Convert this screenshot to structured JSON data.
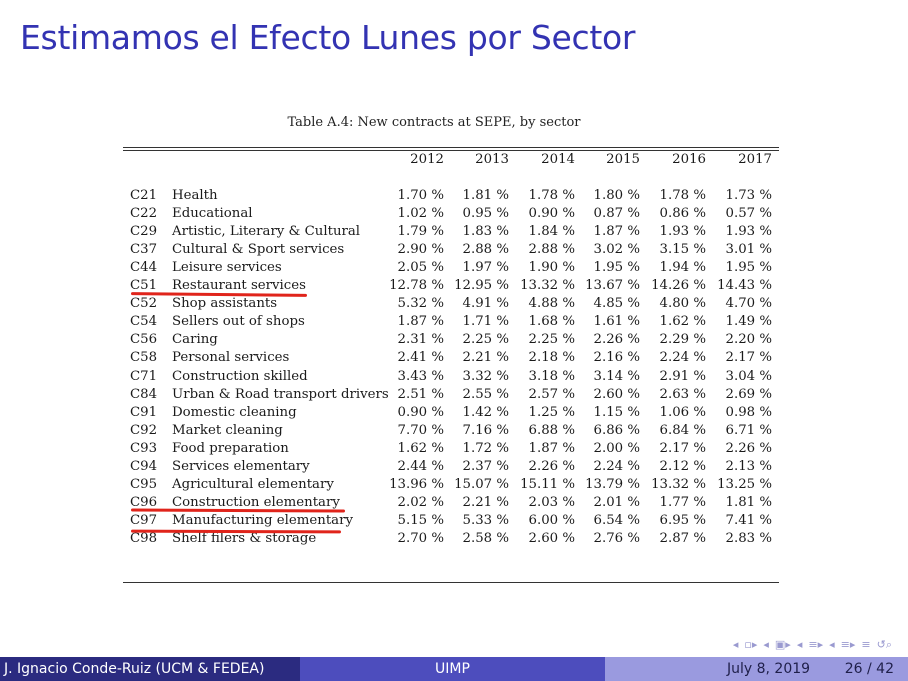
{
  "slide": {
    "title": "Estimamos el Efecto Lunes por Sector"
  },
  "table": {
    "caption": "Table A.4: New contracts at SEPE, by sector",
    "years": [
      "2012",
      "2013",
      "2014",
      "2015",
      "2016",
      "2017"
    ],
    "rows": [
      {
        "code": "C21",
        "name": "Health",
        "values": [
          "1.70 %",
          "1.81 %",
          "1.78 %",
          "1.80 %",
          "1.78 %",
          "1.73 %"
        ]
      },
      {
        "code": "C22",
        "name": "Educational",
        "values": [
          "1.02 %",
          "0.95 %",
          "0.90 %",
          "0.87 %",
          "0.86 %",
          "0.57 %"
        ]
      },
      {
        "code": "C29",
        "name": "Artistic, Literary & Cultural",
        "values": [
          "1.79 %",
          "1.83 %",
          "1.84 %",
          "1.87 %",
          "1.93 %",
          "1.93 %"
        ]
      },
      {
        "code": "C37",
        "name": "Cultural & Sport services",
        "values": [
          "2.90 %",
          "2.88 %",
          "2.88 %",
          "3.02 %",
          "3.15 %",
          "3.01 %"
        ]
      },
      {
        "code": "C44",
        "name": "Leisure services",
        "values": [
          "2.05 %",
          "1.97 %",
          "1.90 %",
          "1.95 %",
          "1.94 %",
          "1.95 %"
        ]
      },
      {
        "code": "C51",
        "name": "Restaurant services",
        "values": [
          "12.78 %",
          "12.95 %",
          "13.32 %",
          "13.67 %",
          "14.26 %",
          "14.43 %"
        ]
      },
      {
        "code": "C52",
        "name": "Shop assistants",
        "values": [
          "5.32 %",
          "4.91 %",
          "4.88 %",
          "4.85 %",
          "4.80 %",
          "4.70 %"
        ]
      },
      {
        "code": "C54",
        "name": "Sellers out of shops",
        "values": [
          "1.87 %",
          "1.71 %",
          "1.68 %",
          "1.61 %",
          "1.62 %",
          "1.49 %"
        ]
      },
      {
        "code": "C56",
        "name": "Caring",
        "values": [
          "2.31 %",
          "2.25 %",
          "2.25 %",
          "2.26 %",
          "2.29 %",
          "2.20 %"
        ]
      },
      {
        "code": "C58",
        "name": "Personal services",
        "values": [
          "2.41 %",
          "2.21 %",
          "2.18 %",
          "2.16 %",
          "2.24 %",
          "2.17 %"
        ]
      },
      {
        "code": "C71",
        "name": "Construction skilled",
        "values": [
          "3.43 %",
          "3.32 %",
          "3.18 %",
          "3.14 %",
          "2.91 %",
          "3.04 %"
        ]
      },
      {
        "code": "C84",
        "name": "Urban & Road transport drivers",
        "values": [
          "2.51 %",
          "2.55 %",
          "2.57 %",
          "2.60 %",
          "2.63 %",
          "2.69 %"
        ]
      },
      {
        "code": "C91",
        "name": "Domestic cleaning",
        "values": [
          "0.90 %",
          "1.42 %",
          "1.25 %",
          "1.15 %",
          "1.06 %",
          "0.98 %"
        ]
      },
      {
        "code": "C92",
        "name": "Market cleaning",
        "values": [
          "7.70 %",
          "7.16 %",
          "6.88 %",
          "6.86 %",
          "6.84 %",
          "6.71 %"
        ]
      },
      {
        "code": "C93",
        "name": "Food preparation",
        "values": [
          "1.62 %",
          "1.72 %",
          "1.87 %",
          "2.00 %",
          "2.17 %",
          "2.26 %"
        ]
      },
      {
        "code": "C94",
        "name": "Services elementary",
        "values": [
          "2.44 %",
          "2.37 %",
          "2.26 %",
          "2.24 %",
          "2.12 %",
          "2.13 %"
        ]
      },
      {
        "code": "C95",
        "name": "Agricultural elementary",
        "values": [
          "13.96 %",
          "15.07 %",
          "15.11 %",
          "13.79 %",
          "13.32 %",
          "13.25 %"
        ]
      },
      {
        "code": "C96",
        "name": "Construction elementary",
        "values": [
          "2.02 %",
          "2.21 %",
          "2.03 %",
          "2.01 %",
          "1.77 %",
          "1.81 %"
        ]
      },
      {
        "code": "C97",
        "name": "Manufacturing elementary",
        "values": [
          "5.15 %",
          "5.33 %",
          "6.00 %",
          "6.54 %",
          "6.95 %",
          "7.41 %"
        ]
      },
      {
        "code": "C98",
        "name": "Shelf filers & storage",
        "values": [
          "2.70 %",
          "2.58 %",
          "2.60 %",
          "2.76 %",
          "2.87 %",
          "2.83 %"
        ]
      }
    ],
    "highlight_color": "#e0241b"
  },
  "nav_icons": [
    "prev-slide-icon",
    "next-slide-icon",
    "prev-frame-icon",
    "next-frame-icon",
    "prev-section-icon",
    "next-section-icon",
    "prev-subsection-icon",
    "next-subsection-icon",
    "align-icon",
    "search-icon"
  ],
  "footer": {
    "author": "J. Ignacio Conde-Ruiz (UCM & FEDEA)",
    "institution": "UIMP",
    "date": "July 8, 2019",
    "page": "26 / 42"
  },
  "colors": {
    "title": "#3333b2",
    "footer_dark": "#2b2b80",
    "footer_mid": "#4d4dbd",
    "footer_light": "#9a9adf"
  }
}
